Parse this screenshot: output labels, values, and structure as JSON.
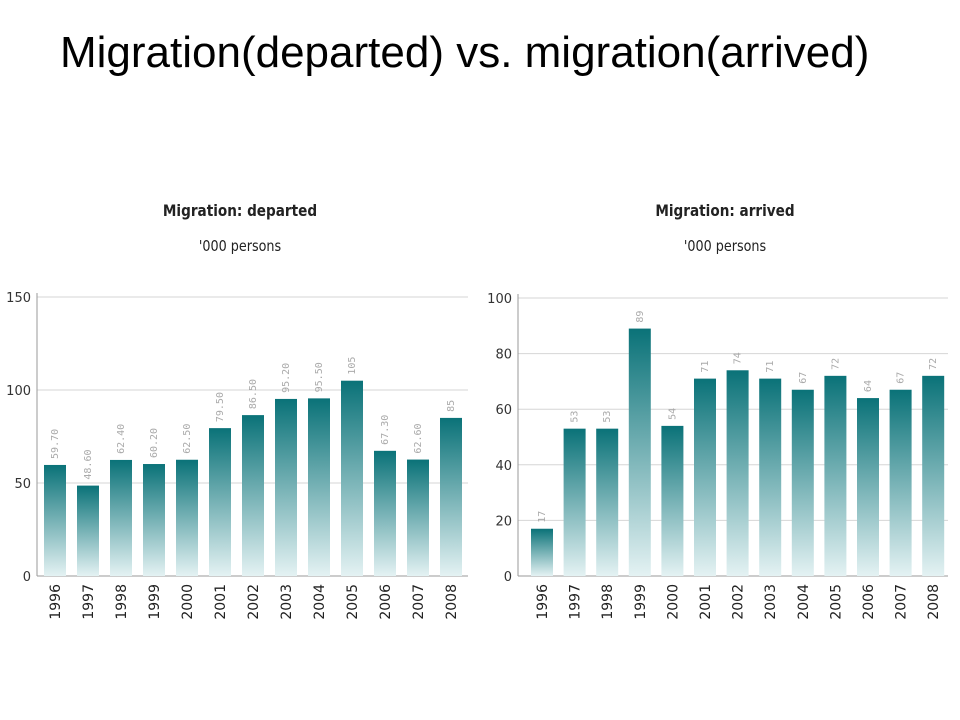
{
  "slide": {
    "title": "Migration(departed) vs. migration(arrived)"
  },
  "chart_data": [
    {
      "type": "bar",
      "title": "Migration: departed",
      "subtitle": "'000 persons",
      "categories": [
        "1996",
        "1997",
        "1998",
        "1999",
        "2000",
        "2001",
        "2002",
        "2003",
        "2004",
        "2005",
        "2006",
        "2007",
        "2008"
      ],
      "values": [
        59.7,
        48.6,
        62.4,
        60.2,
        62.5,
        79.5,
        86.5,
        95.2,
        95.5,
        105,
        67.3,
        62.6,
        85
      ],
      "value_labels": [
        "59.70",
        "48.60",
        "62.40",
        "60.20",
        "62.50",
        "79.50",
        "86.50",
        "95.20",
        "95.50",
        "105",
        "67.30",
        "62.60",
        "85"
      ],
      "ylim": [
        0,
        150
      ],
      "yticks": [
        0,
        50,
        100,
        150
      ],
      "grid": true,
      "colors": {
        "bar_top": "#0a7278",
        "bar_bottom": "#e4f2f3",
        "grid": "#d6d6d6",
        "axis": "#9a9a9a"
      }
    },
    {
      "type": "bar",
      "title": "Migration: arrived",
      "subtitle": "'000 persons",
      "categories": [
        "1996",
        "1997",
        "1998",
        "1999",
        "2000",
        "2001",
        "2002",
        "2003",
        "2004",
        "2005",
        "2006",
        "2007",
        "2008"
      ],
      "values": [
        17,
        53,
        53,
        89,
        54,
        71,
        74,
        71,
        67,
        72,
        64,
        67,
        72
      ],
      "value_labels": [
        "17",
        "53",
        "53",
        "89",
        "54",
        "71",
        "74",
        "71",
        "67",
        "72",
        "64",
        "67",
        "72"
      ],
      "ylim": [
        0,
        100
      ],
      "yticks": [
        0,
        20,
        40,
        60,
        80,
        100
      ],
      "grid": true,
      "colors": {
        "bar_top": "#0a7278",
        "bar_bottom": "#e4f2f3",
        "grid": "#d6d6d6",
        "axis": "#9a9a9a"
      }
    }
  ]
}
